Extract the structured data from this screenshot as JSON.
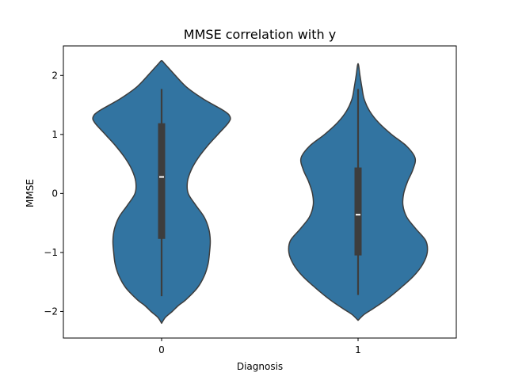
{
  "chart_data": {
    "type": "violin",
    "title": "MMSE correlation with y",
    "xlabel": "Diagnosis",
    "ylabel": "MMSE",
    "categories": [
      "0",
      "1"
    ],
    "ylim": [
      -2.45,
      2.5
    ],
    "yticks": [
      -2,
      -1,
      0,
      1,
      2
    ],
    "ytick_labels": [
      "−2",
      "−1",
      "0",
      "1",
      "2"
    ],
    "grid": false,
    "legend": "none",
    "colors": {
      "fill": "#3274a1",
      "edge": "#3d3d3d",
      "box": "#3d3d3d",
      "median": "#ffffff"
    },
    "violins": [
      {
        "category": "0",
        "whisker_low": -1.74,
        "q1": -0.77,
        "median": 0.28,
        "q3": 1.19,
        "whisker_high": 1.77,
        "density": [
          [
            -2.2,
            0.0
          ],
          [
            -2.1,
            0.05
          ],
          [
            -2.0,
            0.14
          ],
          [
            -1.9,
            0.22
          ],
          [
            -1.8,
            0.32
          ],
          [
            -1.6,
            0.47
          ],
          [
            -1.4,
            0.56
          ],
          [
            -1.2,
            0.61
          ],
          [
            -1.0,
            0.63
          ],
          [
            -0.8,
            0.64
          ],
          [
            -0.6,
            0.62
          ],
          [
            -0.4,
            0.56
          ],
          [
            -0.2,
            0.45
          ],
          [
            0.0,
            0.35
          ],
          [
            0.2,
            0.34
          ],
          [
            0.4,
            0.39
          ],
          [
            0.6,
            0.48
          ],
          [
            0.8,
            0.6
          ],
          [
            1.0,
            0.74
          ],
          [
            1.2,
            0.88
          ],
          [
            1.3,
            0.9
          ],
          [
            1.4,
            0.82
          ],
          [
            1.6,
            0.55
          ],
          [
            1.8,
            0.33
          ],
          [
            2.0,
            0.18
          ],
          [
            2.2,
            0.04
          ],
          [
            2.25,
            0.0
          ]
        ]
      },
      {
        "category": "1",
        "whisker_low": -1.72,
        "q1": -1.05,
        "median": -0.36,
        "q3": 0.44,
        "whisker_high": 1.77,
        "density": [
          [
            -2.15,
            0.0
          ],
          [
            -2.05,
            0.08
          ],
          [
            -1.95,
            0.2
          ],
          [
            -1.8,
            0.37
          ],
          [
            -1.6,
            0.56
          ],
          [
            -1.4,
            0.73
          ],
          [
            -1.2,
            0.85
          ],
          [
            -1.0,
            0.91
          ],
          [
            -0.8,
            0.89
          ],
          [
            -0.6,
            0.76
          ],
          [
            -0.4,
            0.64
          ],
          [
            -0.2,
            0.59
          ],
          [
            0.0,
            0.6
          ],
          [
            0.2,
            0.65
          ],
          [
            0.4,
            0.72
          ],
          [
            0.6,
            0.75
          ],
          [
            0.8,
            0.64
          ],
          [
            1.0,
            0.44
          ],
          [
            1.2,
            0.27
          ],
          [
            1.4,
            0.15
          ],
          [
            1.6,
            0.08
          ],
          [
            1.8,
            0.05
          ],
          [
            2.0,
            0.025
          ],
          [
            2.2,
            0.0
          ]
        ]
      }
    ]
  }
}
